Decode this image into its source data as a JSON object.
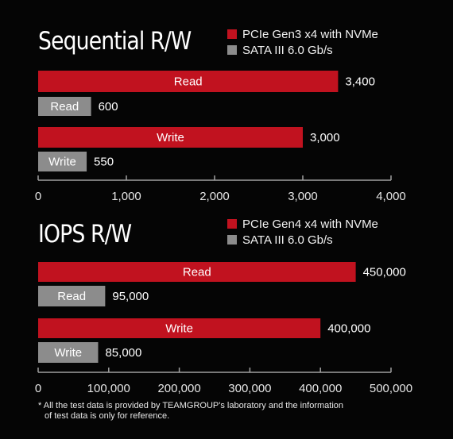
{
  "chart_data": [
    {
      "type": "bar",
      "title": "Sequential R/W",
      "categories": [
        "Read",
        "Write"
      ],
      "series": [
        {
          "name": "PCIe Gen3 x4 with NVMe",
          "values": [
            3400,
            3000
          ],
          "value_labels": [
            "3,400",
            "3,000"
          ],
          "color": "#c1121f"
        },
        {
          "name": "SATA III 6.0 Gb/s",
          "values": [
            600,
            550
          ],
          "value_labels": [
            "600",
            "550"
          ],
          "color": "#8c8c8c"
        }
      ],
      "xlim": [
        0,
        4000
      ],
      "ticks": [
        0,
        1000,
        2000,
        3000,
        4000
      ],
      "tick_labels": [
        "0",
        "1,000",
        "2,000",
        "3,000",
        "4,000"
      ],
      "orientation": "horizontal",
      "grid": false,
      "legend_position": "top-right"
    },
    {
      "type": "bar",
      "title": "IOPS R/W",
      "categories": [
        "Read",
        "Write"
      ],
      "series": [
        {
          "name": "PCIe Gen4 x4 with NVMe",
          "values": [
            450000,
            400000
          ],
          "value_labels": [
            "450,000",
            "400,000"
          ],
          "color": "#c1121f"
        },
        {
          "name": "SATA III 6.0 Gb/s",
          "values": [
            95000,
            85000
          ],
          "value_labels": [
            "95,000",
            "85,000"
          ],
          "color": "#8c8c8c"
        }
      ],
      "xlim": [
        0,
        500000
      ],
      "ticks": [
        0,
        100000,
        200000,
        300000,
        400000,
        500000
      ],
      "tick_labels": [
        "0",
        "100,000",
        "200,000",
        "300,000",
        "400,000",
        "500,000"
      ],
      "orientation": "horizontal",
      "grid": false,
      "legend_position": "top-right"
    }
  ],
  "footnote": {
    "line1": "* All the test data is provided by TEAMGROUP's laboratory and the information",
    "line2": "of test data is only for reference."
  },
  "colors": {
    "background": "#050505",
    "axis": "#a0a0a0",
    "text": "#ffffff"
  }
}
